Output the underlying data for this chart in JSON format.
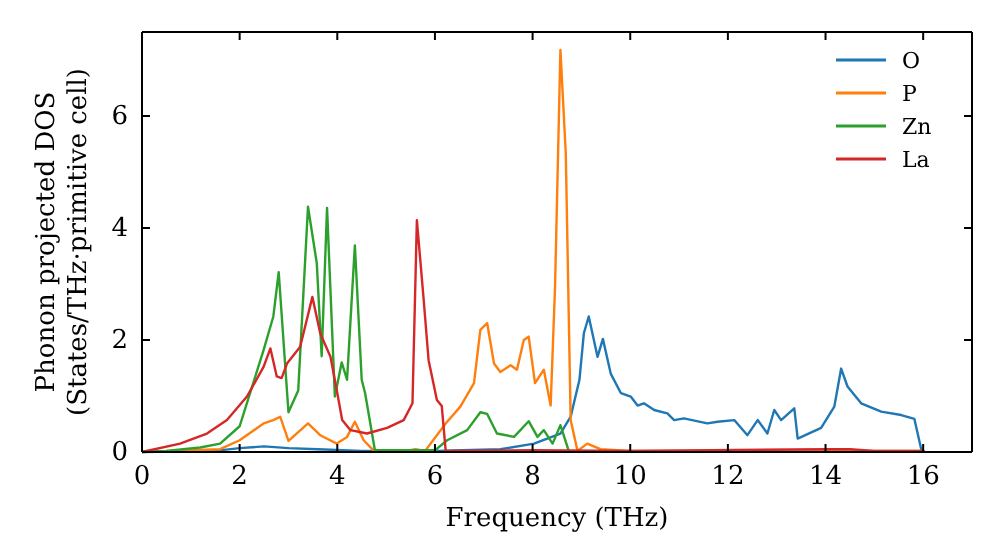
{
  "chart_data": {
    "type": "line",
    "xlabel": "Frequency (THz)",
    "ylabel": "Phonon projected DOS\n(States/THz·primitive cell)",
    "xlim": [
      0,
      17
    ],
    "ylim": [
      0,
      7.5
    ],
    "xticks": [
      0,
      2,
      4,
      6,
      8,
      10,
      12,
      14,
      16
    ],
    "yticks": [
      0,
      2,
      4,
      6
    ],
    "grid": false,
    "legend": "top right",
    "series": [
      {
        "name": "O",
        "color": "#1f77b4",
        "x": [
          0,
          1.5,
          2.0,
          2.5,
          3.0,
          3.6,
          4.5,
          6.0,
          7.34,
          8.03,
          8.57,
          8.78,
          8.96,
          9.05,
          9.15,
          9.33,
          9.44,
          9.6,
          9.81,
          10.01,
          10.15,
          10.28,
          10.49,
          10.76,
          10.9,
          11.1,
          11.58,
          11.79,
          12.13,
          12.4,
          12.61,
          12.81,
          12.95,
          13.09,
          13.36,
          13.43,
          13.91,
          14.18,
          14.32,
          14.45,
          14.73,
          15.14,
          15.55,
          15.82,
          15.96,
          16.03
        ],
        "values": [
          0,
          0.02,
          0.07,
          0.1,
          0.07,
          0.05,
          0.02,
          0.02,
          0.05,
          0.15,
          0.33,
          0.63,
          1.29,
          2.12,
          2.42,
          1.7,
          2.02,
          1.4,
          1.05,
          0.99,
          0.83,
          0.87,
          0.75,
          0.69,
          0.57,
          0.6,
          0.51,
          0.54,
          0.57,
          0.3,
          0.57,
          0.33,
          0.75,
          0.57,
          0.78,
          0.24,
          0.43,
          0.81,
          1.49,
          1.17,
          0.87,
          0.72,
          0.66,
          0.59,
          0.05,
          0
        ]
      },
      {
        "name": "P",
        "color": "#ff7f0e",
        "x": [
          0,
          1.6,
          2.0,
          2.49,
          2.69,
          2.83,
          3.0,
          3.4,
          3.65,
          3.99,
          4.2,
          4.36,
          4.54,
          4.75,
          5.4,
          5.6,
          5.8,
          6.22,
          6.52,
          6.8,
          6.93,
          7.07,
          7.21,
          7.34,
          7.55,
          7.68,
          7.82,
          7.92,
          8.05,
          8.23,
          8.37,
          8.46,
          8.57,
          8.68,
          8.78,
          8.92,
          9.12,
          9.39,
          10.0,
          16.0
        ],
        "values": [
          0,
          0.05,
          0.21,
          0.51,
          0.57,
          0.63,
          0.2,
          0.51,
          0.3,
          0.15,
          0.27,
          0.54,
          0.21,
          0.02,
          0.02,
          0.05,
          0.02,
          0.51,
          0.81,
          1.23,
          2.18,
          2.3,
          1.58,
          1.43,
          1.55,
          1.47,
          2.0,
          2.06,
          1.23,
          1.47,
          0.83,
          2.95,
          7.18,
          5.33,
          0.57,
          0.02,
          0.15,
          0.05,
          0.02,
          0.02
        ]
      },
      {
        "name": "Zn",
        "color": "#2ca02c",
        "x": [
          0,
          0.5,
          1.19,
          1.6,
          2.0,
          2.49,
          2.69,
          2.8,
          3.0,
          3.2,
          3.4,
          3.58,
          3.68,
          3.79,
          3.95,
          4.09,
          4.2,
          4.36,
          4.5,
          4.57,
          4.77,
          6.0,
          6.25,
          6.66,
          6.93,
          7.07,
          7.27,
          7.62,
          7.92,
          8.1,
          8.23,
          8.41,
          8.57,
          8.74
        ],
        "values": [
          0,
          0.02,
          0.08,
          0.15,
          0.46,
          1.82,
          2.42,
          3.21,
          0.71,
          1.1,
          4.38,
          3.37,
          1.71,
          4.36,
          0.99,
          1.6,
          1.29,
          3.69,
          1.29,
          1.05,
          0.03,
          0.03,
          0.21,
          0.39,
          0.71,
          0.68,
          0.33,
          0.27,
          0.55,
          0.27,
          0.39,
          0.15,
          0.48,
          0.02
        ]
      },
      {
        "name": "La",
        "color": "#d62728",
        "x": [
          0,
          0.78,
          1.33,
          1.74,
          2.15,
          2.49,
          2.63,
          2.76,
          2.86,
          2.97,
          3.24,
          3.49,
          3.65,
          3.86,
          3.99,
          4.1,
          4.27,
          4.61,
          5.02,
          5.36,
          5.54,
          5.63,
          5.77,
          5.87,
          6.04,
          6.14,
          6.22,
          8.0,
          10.0,
          14.0,
          14.5,
          15.0,
          16.0
        ],
        "values": [
          0,
          0.15,
          0.33,
          0.57,
          0.99,
          1.52,
          1.85,
          1.35,
          1.32,
          1.58,
          1.88,
          2.77,
          2.12,
          1.7,
          1.1,
          0.57,
          0.39,
          0.33,
          0.43,
          0.57,
          0.87,
          4.14,
          2.71,
          1.64,
          0.93,
          0.82,
          0.02,
          0.03,
          0.02,
          0.05,
          0.05,
          0.02,
          0.02
        ]
      }
    ]
  }
}
